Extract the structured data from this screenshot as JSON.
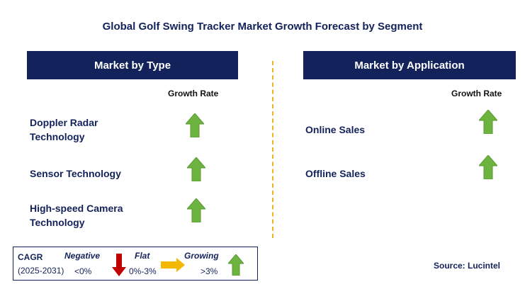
{
  "title": "Global Golf Swing Tracker Market Growth Forecast by Segment",
  "left_panel": {
    "header": "Market by Type",
    "growth_rate_label": "Growth Rate",
    "segments": [
      {
        "label_line1": "Doppler Radar",
        "label_line2": "Technology",
        "trend": "growing"
      },
      {
        "label_line1": "Sensor Technology",
        "label_line2": "",
        "trend": "growing"
      },
      {
        "label_line1": "High-speed Camera",
        "label_line2": "Technology",
        "trend": "growing"
      }
    ]
  },
  "right_panel": {
    "header": "Market by Application",
    "growth_rate_label": "Growth Rate",
    "segments": [
      {
        "label": "Online Sales",
        "trend": "growing"
      },
      {
        "label": "Offline Sales",
        "trend": "growing"
      }
    ]
  },
  "legend": {
    "cagr_label": "CAGR",
    "period": "(2025-2031)",
    "negative_label": "Negative",
    "negative_range": "<0%",
    "flat_label": "Flat",
    "flat_range": "0%-3%",
    "growing_label": "Growing",
    "growing_range": ">3%"
  },
  "source": "Source: Lucintel",
  "colors": {
    "navy": "#13225a",
    "growing_green": "#6db33f",
    "negative_red": "#c00000",
    "flat_yellow": "#f5b800",
    "divider": "#f0b323"
  }
}
